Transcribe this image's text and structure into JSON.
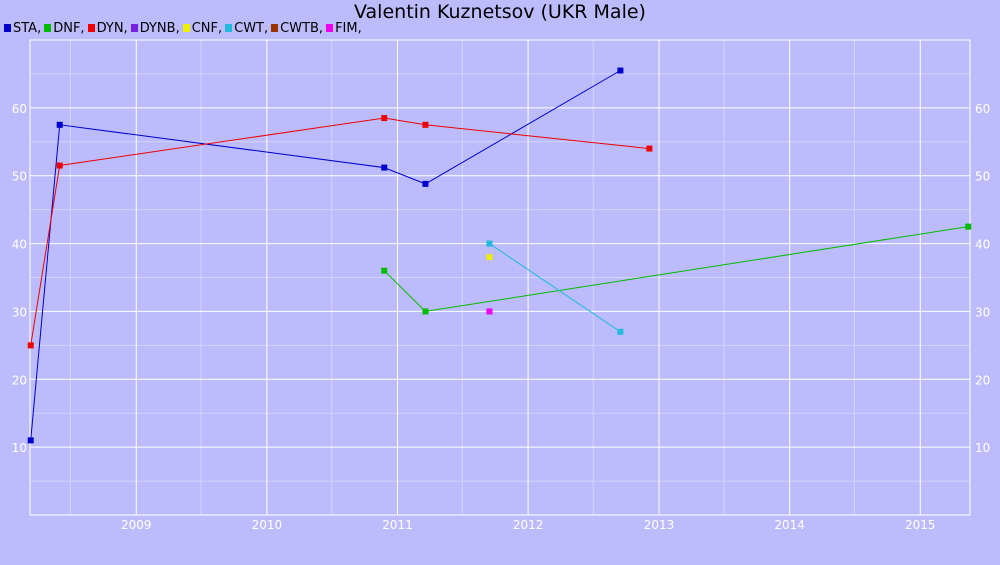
{
  "chart_data": {
    "type": "line",
    "title": "Valentin Kuznetsov (UKR Male)",
    "xlabel": "",
    "ylabel": "",
    "x_axis": {
      "kind": "date",
      "range": [
        "2008-03-10",
        "2015-05-20"
      ],
      "ticks": [
        "2009",
        "2010",
        "2011",
        "2012",
        "2013",
        "2014",
        "2015"
      ]
    },
    "y_axis": {
      "range": [
        0,
        70
      ],
      "ticks": [
        10,
        20,
        30,
        40,
        50,
        60
      ],
      "labels_left": true,
      "labels_right": true
    },
    "grid": true,
    "legend_placement": "top-left",
    "legend_separator": ",",
    "series": [
      {
        "name": "STA",
        "color": "#0000cc",
        "points": [
          [
            "2008-03-12",
            11
          ],
          [
            "2008-06-01",
            57.5
          ],
          [
            "2010-11-25",
            51.2
          ],
          [
            "2011-03-20",
            48.8
          ],
          [
            "2012-09-15",
            65.5
          ]
        ]
      },
      {
        "name": "DNF",
        "color": "#00bb00",
        "points": [
          [
            "2010-11-25",
            36
          ],
          [
            "2011-03-20",
            30
          ],
          [
            "2015-05-15",
            42.5
          ]
        ]
      },
      {
        "name": "DYN",
        "color": "#ee0000",
        "points": [
          [
            "2008-03-12",
            25
          ],
          [
            "2008-06-01",
            51.5
          ],
          [
            "2010-11-25",
            58.5
          ],
          [
            "2011-03-20",
            57.5
          ],
          [
            "2012-12-05",
            54
          ]
        ]
      },
      {
        "name": "DYNB",
        "color": "#7722dd",
        "points": []
      },
      {
        "name": "CNF",
        "color": "#eeee00",
        "points": [
          [
            "2011-09-15",
            38
          ]
        ]
      },
      {
        "name": "CWT",
        "color": "#22bbdd",
        "points": [
          [
            "2011-09-15",
            40
          ],
          [
            "2012-09-15",
            27
          ]
        ]
      },
      {
        "name": "CWTB",
        "color": "#993300",
        "points": []
      },
      {
        "name": "FIM",
        "color": "#ee00ee",
        "points": [
          [
            "2011-09-15",
            30
          ]
        ]
      }
    ]
  }
}
